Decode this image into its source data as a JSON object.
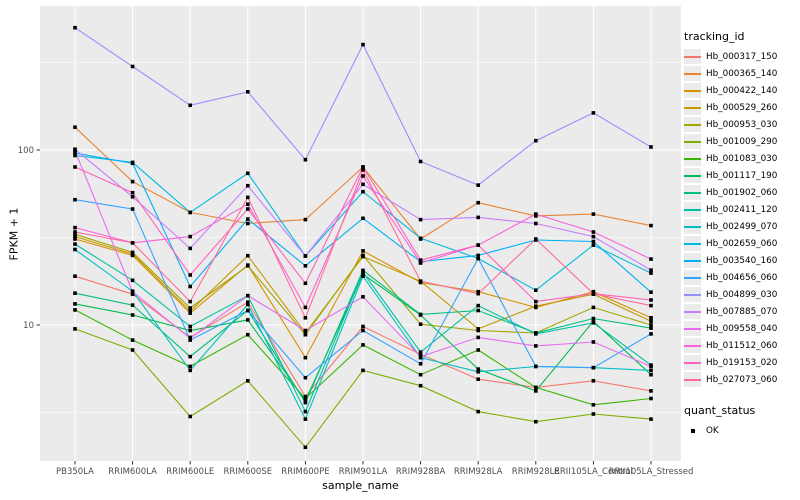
{
  "chart_data": {
    "type": "line",
    "title": "",
    "xlabel": "sample_name",
    "ylabel": "FPKM + 1",
    "y_scale": "log10",
    "ylim": [
      1.7,
      650
    ],
    "y_ticks": [
      10,
      100
    ],
    "y_tick_labels": [
      "10",
      "100"
    ],
    "y_minor_ticks": [
      3.162,
      31.62,
      316.2
    ],
    "grid": "on",
    "legend_position": "right",
    "categories": [
      "PB350LA",
      "RRIM600LA",
      "RRIM600LE",
      "RRIM600SE",
      "RRIM600PE",
      "RRIM901LA",
      "RRIM928BA",
      "RRIM928LA",
      "RRIM928LE",
      "RRII105LA_Control",
      "RRII105LA_Stressed"
    ],
    "series": [
      {
        "name": "Hb_000317_150",
        "color": "#F8766D",
        "values": [
          19,
          15,
          8.5,
          13.5,
          3.9,
          9.8,
          6.8,
          4.9,
          4.4,
          4.8,
          4.2
        ]
      },
      {
        "name": "Hb_000365_140",
        "color": "#EA8331",
        "values": [
          135,
          66,
          44,
          38,
          40,
          80,
          31,
          50,
          42,
          43,
          37
        ]
      },
      {
        "name": "Hb_000422_140",
        "color": "#D89000",
        "values": [
          31,
          25,
          11.7,
          22,
          6.5,
          26.5,
          17.5,
          15.5,
          12.6,
          15.5,
          11
        ]
      },
      {
        "name": "Hb_000529_260",
        "color": "#C49A00",
        "values": [
          32,
          25.5,
          12,
          24.9,
          9,
          24.6,
          17.8,
          9.5,
          12.8,
          15,
          10.5
        ]
      },
      {
        "name": "Hb_000953_030",
        "color": "#A3A500",
        "values": [
          33,
          26,
          12.5,
          21.8,
          8.8,
          25,
          10.1,
          9.3,
          9,
          12.6,
          10
        ]
      },
      {
        "name": "Hb_001009_290",
        "color": "#7CAE00",
        "values": [
          9.5,
          7.2,
          3,
          4.8,
          2,
          5.5,
          4.5,
          3.2,
          2.8,
          3.1,
          2.9
        ]
      },
      {
        "name": "Hb_001083_030",
        "color": "#39B600",
        "values": [
          12.2,
          8.2,
          5.8,
          8.8,
          3.8,
          7.7,
          5.2,
          7.2,
          4.4,
          3.5,
          3.8
        ]
      },
      {
        "name": "Hb_001117_190",
        "color": "#00BB4E",
        "values": [
          13.2,
          11.4,
          9.3,
          10.7,
          3.7,
          19.5,
          11.4,
          5.6,
          4.2,
          10.5,
          5.2
        ]
      },
      {
        "name": "Hb_001902_060",
        "color": "#00BF7D",
        "values": [
          15.2,
          13,
          6.6,
          12.1,
          3.6,
          20.5,
          11.5,
          12.1,
          9,
          10.9,
          9.6
        ]
      },
      {
        "name": "Hb_002411_120",
        "color": "#00C1A3",
        "values": [
          29,
          18,
          9.8,
          14.7,
          3.2,
          20,
          7,
          12.9,
          8.9,
          10.3,
          5.9
        ]
      },
      {
        "name": "Hb_002499_070",
        "color": "#00BFC4",
        "values": [
          27,
          15.6,
          5.5,
          13.1,
          2.9,
          19,
          6.5,
          5.4,
          5.8,
          5.7,
          5.5
        ]
      },
      {
        "name": "Hb_002659_060",
        "color": "#00BAE0",
        "values": [
          93,
          85,
          44,
          73.6,
          24.8,
          57.8,
          31.3,
          24,
          15.8,
          28.6,
          19.8
        ]
      },
      {
        "name": "Hb_003540_160",
        "color": "#00B0F6",
        "values": [
          96,
          84,
          16.6,
          40.3,
          21.8,
          40.7,
          23,
          25,
          30.6,
          30,
          15.4
        ]
      },
      {
        "name": "Hb_004656_060",
        "color": "#35A2FF",
        "values": [
          52,
          46,
          8.2,
          12.1,
          5,
          9.3,
          6,
          24,
          5.8,
          5.7,
          8.9
        ]
      },
      {
        "name": "Hb_004899_030",
        "color": "#9590FF",
        "values": [
          500,
          300,
          180,
          215,
          88,
          400,
          86,
          63,
          113,
          163,
          104
        ]
      },
      {
        "name": "Hb_007885_070",
        "color": "#C77CFF",
        "values": [
          101,
          54,
          27.4,
          62.5,
          24.8,
          63.7,
          40,
          41.2,
          38,
          32,
          20.6
        ]
      },
      {
        "name": "Hb_009558_040",
        "color": "#E76BF3",
        "values": [
          99,
          15.5,
          8.4,
          14.7,
          9.3,
          14.5,
          6.6,
          8.5,
          7.6,
          8,
          5.8
        ]
      },
      {
        "name": "Hb_011512_060",
        "color": "#FA62DB",
        "values": [
          36,
          29.5,
          32,
          49,
          12.6,
          71,
          22.6,
          28.6,
          43,
          34,
          23.8
        ]
      },
      {
        "name": "Hb_019153_020",
        "color": "#FF62BC",
        "values": [
          80,
          57,
          19.3,
          46,
          17.3,
          80,
          23.5,
          28.6,
          13.6,
          15.1,
          13.9
        ]
      },
      {
        "name": "Hb_027073_060",
        "color": "#FF6A98",
        "values": [
          34,
          29.5,
          13.6,
          53.6,
          11,
          77,
          17.8,
          15.1,
          31,
          15.1,
          12.9
        ]
      }
    ],
    "legend": {
      "tracking_title": "tracking_id",
      "quant_title": "quant_status",
      "quant_ok_label": "OK"
    },
    "colors": {
      "panel_background": "#EBEBEB",
      "grid": "#FFFFFF",
      "tick_label": "#4D4D4D",
      "tick_mark": "#333333",
      "axis_title": "#000000",
      "marker": "#000000"
    }
  }
}
